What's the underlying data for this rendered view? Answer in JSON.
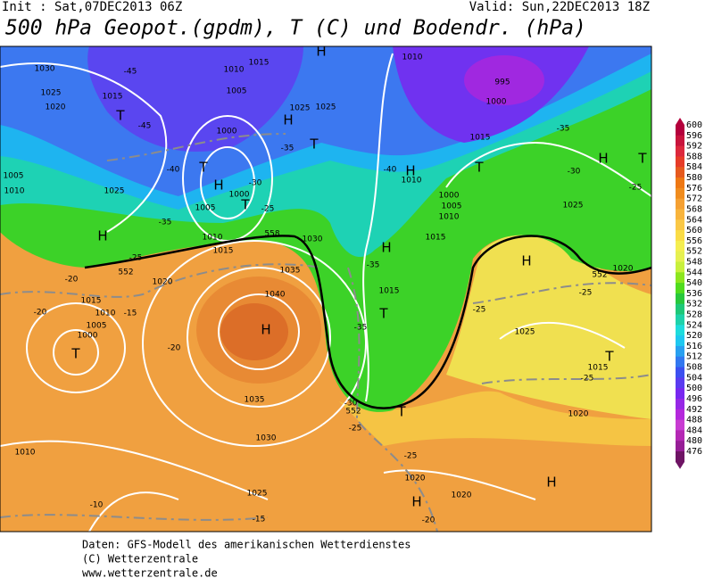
{
  "header": {
    "init": "Init : Sat,07DEC2013 06Z",
    "valid": "Valid: Sun,22DEC2013 18Z",
    "title": "500 hPa Geopot.(gpdm), T (C) und Bodendr. (hPa)"
  },
  "colorbar": {
    "levels": [
      600,
      596,
      592,
      588,
      584,
      580,
      576,
      572,
      568,
      564,
      560,
      556,
      552,
      548,
      544,
      540,
      536,
      532,
      528,
      524,
      520,
      516,
      512,
      508,
      504,
      500,
      496,
      492,
      488,
      484,
      480,
      476
    ],
    "colors": [
      "#b4003c",
      "#c8143c",
      "#dc283c",
      "#e63c28",
      "#e65a1e",
      "#ee7814",
      "#f08c1e",
      "#f5a032",
      "#f8b43c",
      "#fac846",
      "#fadc46",
      "#f5ee50",
      "#e6f050",
      "#c8f03c",
      "#8ce61e",
      "#50dc1e",
      "#28c83c",
      "#1ec878",
      "#1ed2aa",
      "#1edcdc",
      "#1ec8f0",
      "#28a0f0",
      "#3278f0",
      "#3c50f0",
      "#5a3cf0",
      "#7828f0",
      "#9628e6",
      "#b428dc",
      "#c83cd2",
      "#b428b4",
      "#961e96",
      "#6e1464"
    ]
  },
  "map": {
    "pressure_centers": [
      "H",
      "T",
      "H",
      "T",
      "T",
      "H",
      "T",
      "H",
      "H",
      "T",
      "H",
      "T",
      "H",
      "H",
      "T",
      "H",
      "T",
      "T",
      "T",
      "H",
      "H"
    ],
    "contour_labels": [
      "1030",
      "1025",
      "1020",
      "1015",
      "1005",
      "1010",
      "1025",
      "1010",
      "1015",
      "1005",
      "1000",
      "1000",
      "1005",
      "1010",
      "1015",
      "1030",
      "1035",
      "1040",
      "1035",
      "1030",
      "1025",
      "1020",
      "1015",
      "1010",
      "1005",
      "1000",
      "1010",
      "1025",
      "1025",
      "1010",
      "995",
      "1000",
      "1015",
      "1010",
      "1000",
      "1005",
      "1010",
      "1015",
      "1015",
      "1025",
      "1020",
      "1025",
      "1015",
      "1020",
      "1020",
      "1020",
      "-45",
      "-45",
      "-40",
      "-35",
      "-35",
      "-30",
      "-25",
      "-25",
      "-20",
      "-20",
      "-15",
      "-20",
      "-35",
      "-35",
      "-30",
      "-25",
      "-25",
      "-20",
      "-15",
      "-10",
      "-40",
      "-35",
      "-30",
      "-25",
      "-25",
      "-25",
      "-25",
      "552",
      "552",
      "552",
      "558"
    ]
  },
  "footer": [
    "Daten: GFS-Modell des amerikanischen Wetterdienstes",
    "(C) Wetterzentrale",
    "www.wetterzentrale.de"
  ]
}
